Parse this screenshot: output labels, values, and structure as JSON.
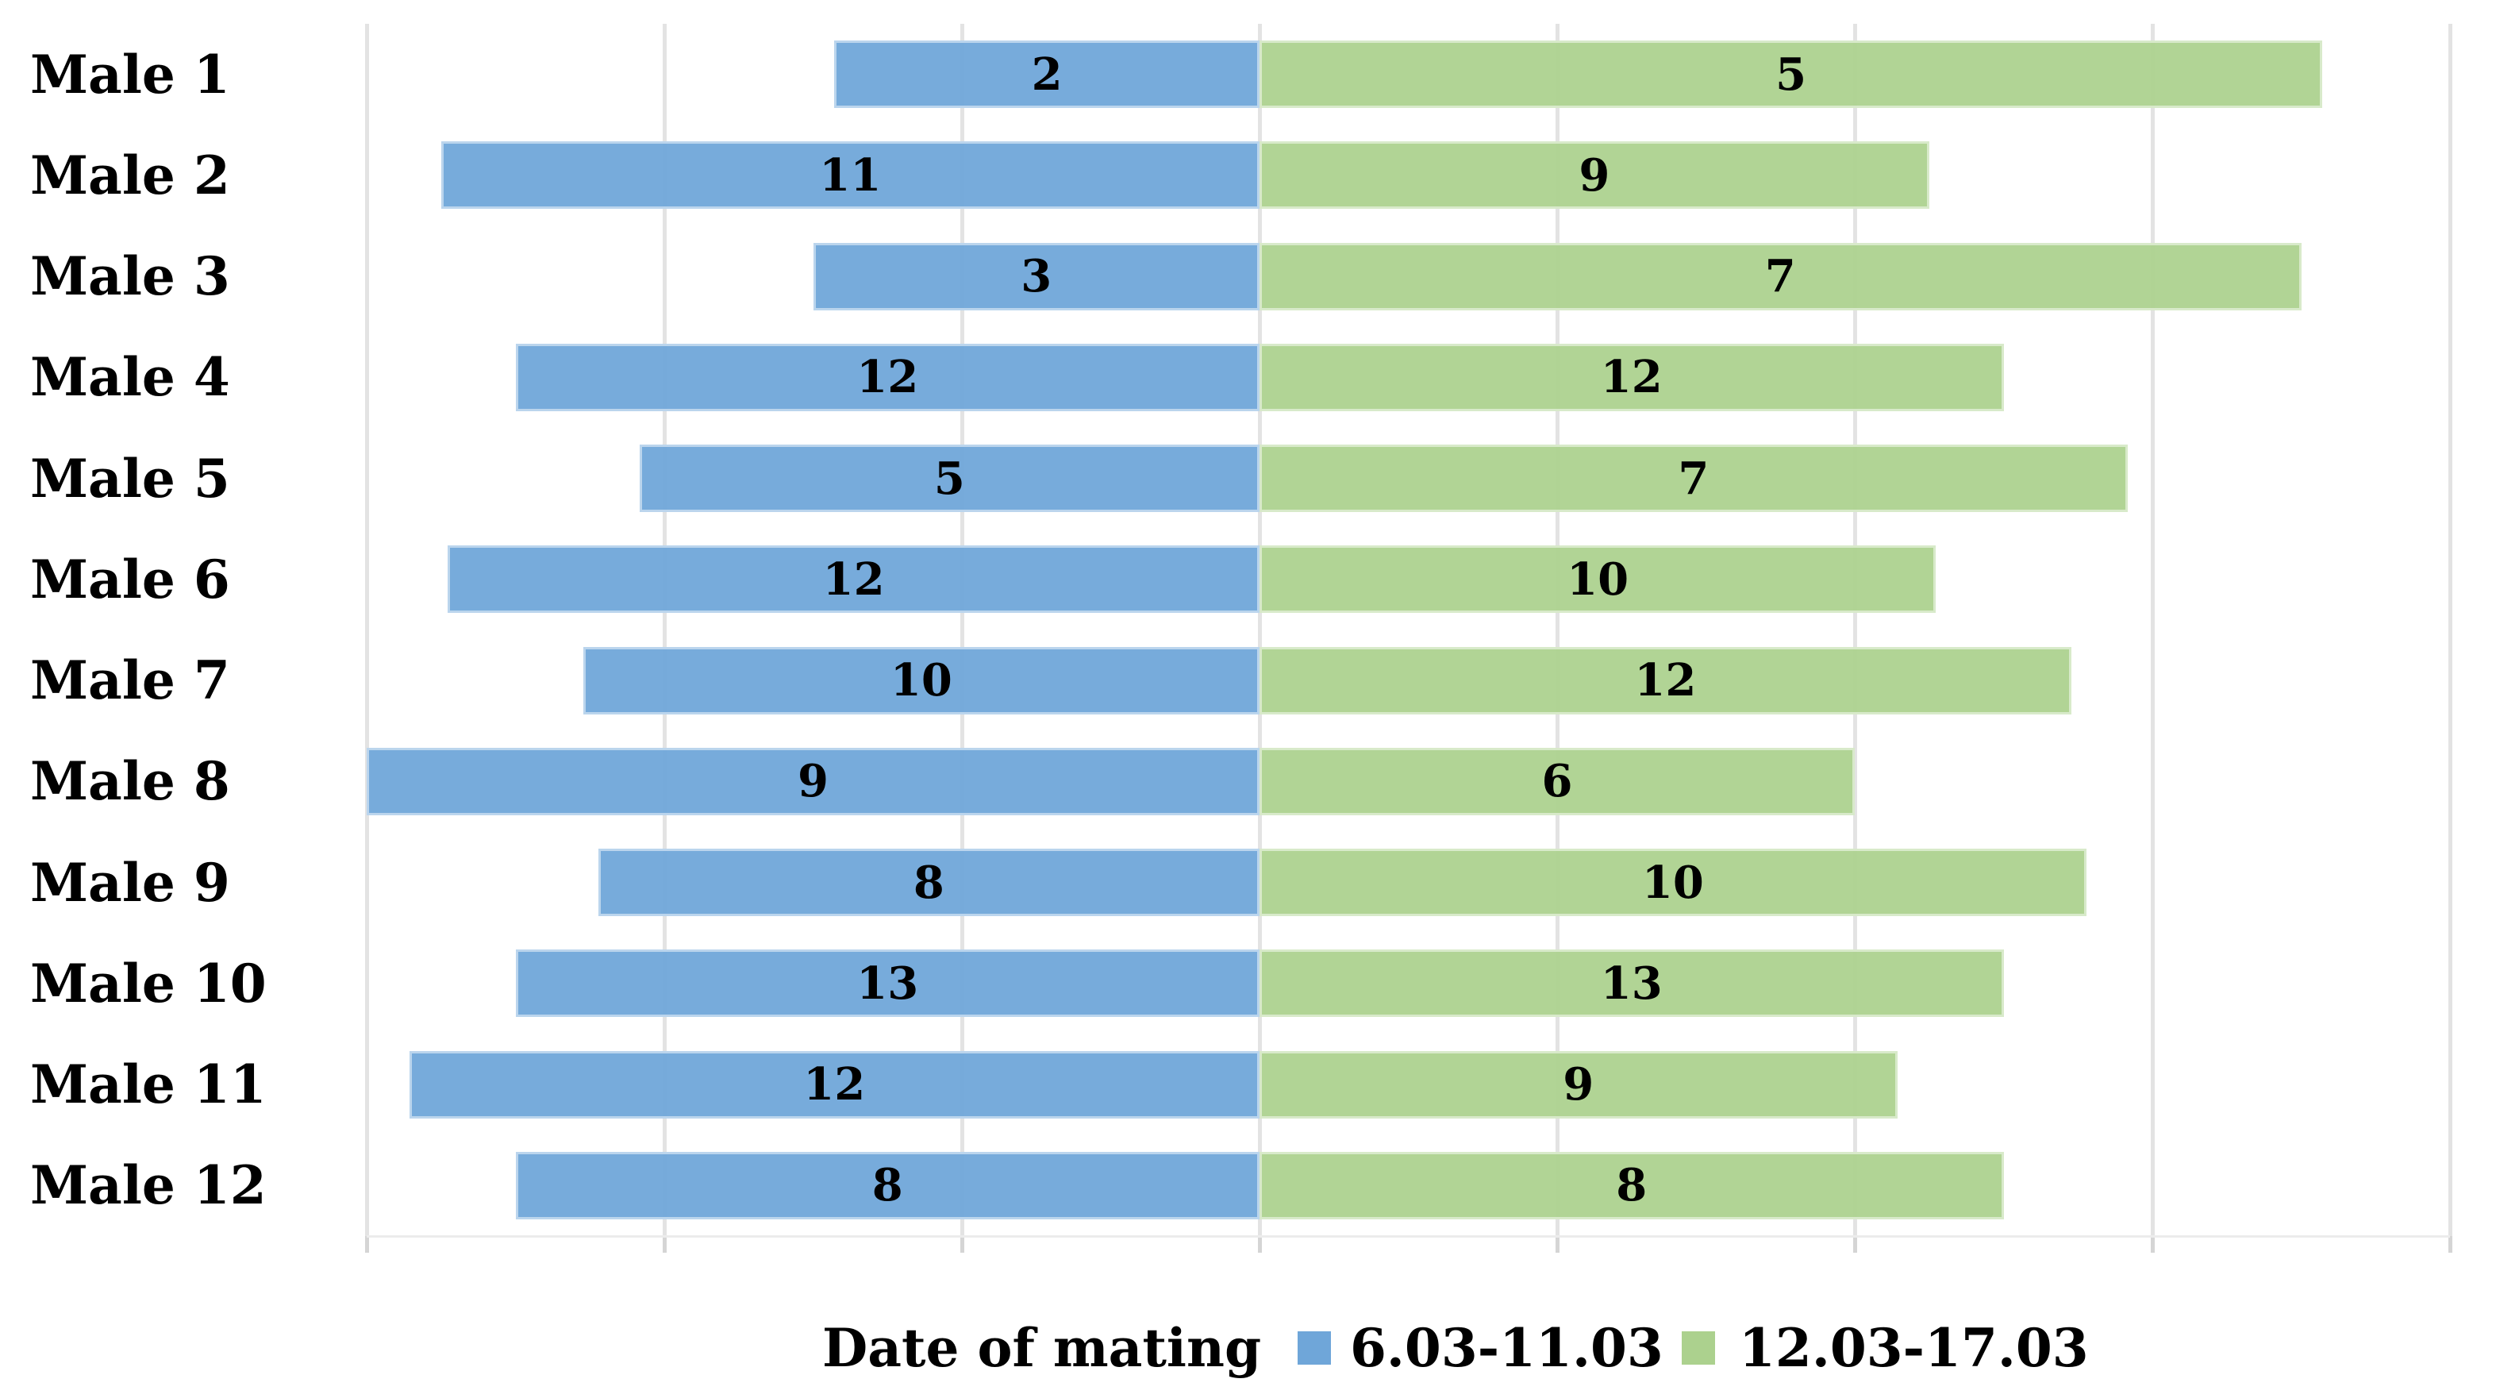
{
  "chart_data": {
    "type": "bar",
    "orientation": "horizontal",
    "variant": "diverging 100% stacked bar; every row has equal total length and the blue/green split is aligned on a common center line",
    "title": "",
    "categories": [
      "Male 1",
      "Male 2",
      "Male 3",
      "Male 4",
      "Male 5",
      "Male 6",
      "Male 7",
      "Male 8",
      "Male 9",
      "Male 10",
      "Male 11",
      "Male 12"
    ],
    "series": [
      {
        "name": "6.03-11.03",
        "color": "#6FA6D9",
        "values": [
          2,
          11,
          3,
          12,
          5,
          12,
          10,
          9,
          8,
          13,
          12,
          8
        ]
      },
      {
        "name": "12.03-17.03",
        "color": "#ACD18E",
        "values": [
          5,
          9,
          7,
          12,
          7,
          10,
          12,
          6,
          10,
          13,
          9,
          8
        ]
      }
    ],
    "data_labels": "each segment shows its count, centered in the segment",
    "x_axis": {
      "tick_labels_visible": false,
      "gridlines": 8,
      "gridline_spacing": "20% of row total",
      "range_relative_to_center": [
        -60,
        80
      ]
    },
    "grid": true,
    "legend_position": "bottom",
    "legend_title": "Date of mating",
    "colors": {
      "grid": "#e3e3e3",
      "background": "#ffffff",
      "label_text": "#000000"
    }
  },
  "legend": {
    "title": "Date of mating",
    "items": [
      {
        "label": "6.03-11.03",
        "color": "#6FA6D9"
      },
      {
        "label": "12.03-17.03",
        "color": "#ACD18E"
      }
    ]
  }
}
